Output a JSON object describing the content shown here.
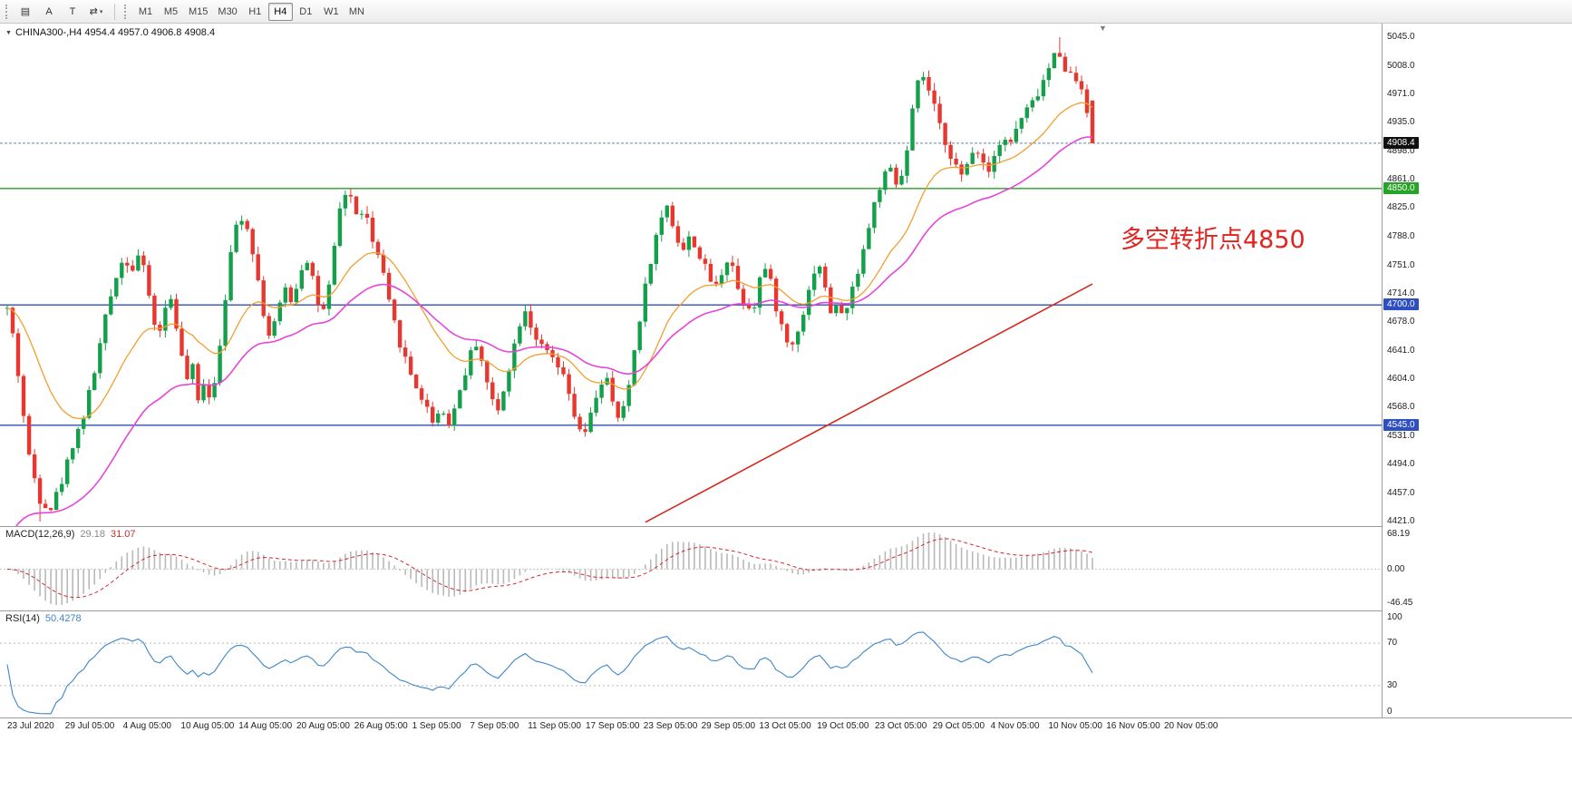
{
  "toolbar": {
    "tools": [
      {
        "name": "chart-tool",
        "glyph": "▤"
      },
      {
        "name": "label-tool",
        "glyph": "A"
      },
      {
        "name": "text-tool",
        "glyph": "T"
      },
      {
        "name": "objects-tool",
        "glyph": "⇄",
        "caret": "▾"
      }
    ],
    "timeframes": [
      {
        "label": "M1",
        "active": false
      },
      {
        "label": "M5",
        "active": false
      },
      {
        "label": "M15",
        "active": false
      },
      {
        "label": "M30",
        "active": false
      },
      {
        "label": "H1",
        "active": false
      },
      {
        "label": "H4",
        "active": true
      },
      {
        "label": "D1",
        "active": false
      },
      {
        "label": "W1",
        "active": false
      },
      {
        "label": "MN",
        "active": false
      }
    ]
  },
  "chart": {
    "symbol_line": "CHINA300-,H4 4954.4 4957.0 4906.8 4908.4",
    "collapse_icon": "▼",
    "shift_marker_icon": "▼",
    "annotation": {
      "text": "多空转折点4850",
      "color": "#e02420"
    }
  },
  "macd_panel": {
    "label": "MACD(12,26,9)",
    "value_main": "29.18",
    "value_signal": "31.07",
    "axis_labels": [
      "68.19",
      "0.00",
      "-46.45"
    ]
  },
  "rsi_panel": {
    "label": "RSI(14)",
    "value": "50.4278",
    "axis_labels": [
      "100",
      "70",
      "30",
      "0"
    ],
    "levels": [
      70,
      30
    ]
  },
  "time_axis": {
    "labels": [
      "23 Jul 2020",
      "29 Jul 05:00",
      "4 Aug 05:00",
      "10 Aug 05:00",
      "14 Aug 05:00",
      "20 Aug 05:00",
      "26 Aug 05:00",
      "1 Sep 05:00",
      "7 Sep 05:00",
      "11 Sep 05:00",
      "17 Sep 05:00",
      "23 Sep 05:00",
      "29 Sep 05:00",
      "13 Oct 05:00",
      "19 Oct 05:00",
      "23 Oct 05:00",
      "29 Oct 05:00",
      "4 Nov 05:00",
      "10 Nov 05:00",
      "16 Nov 05:00",
      "20 Nov 05:00"
    ]
  },
  "chart_data": {
    "type": "candlestick",
    "symbol": "CHINA300-",
    "timeframe": "H4",
    "ohlc_display": {
      "open": 4954.4,
      "high": 4957.0,
      "low": 4906.8,
      "close": 4908.4
    },
    "price_axis_labels": [
      5045.0,
      5008.0,
      4971.0,
      4935.0,
      4898.0,
      4861.0,
      4825.0,
      4788.0,
      4751.0,
      4714.0,
      4678.0,
      4641.0,
      4604.0,
      4568.0,
      4531.0,
      4494.0,
      4457.0,
      4421.0
    ],
    "price_axis_max": 5062.5,
    "price_axis_min": 4415.1,
    "candle_count": 200,
    "last_close": 4908.4,
    "extremes": {
      "high": {
        "t": 0.968,
        "price": 5045.0
      },
      "low": {
        "t": 0.03,
        "price": 4421.0
      }
    },
    "price_path": [
      [
        0.0,
        4695
      ],
      [
        0.006,
        4655
      ],
      [
        0.012,
        4590
      ],
      [
        0.02,
        4505
      ],
      [
        0.03,
        4450
      ],
      [
        0.04,
        4438
      ],
      [
        0.05,
        4472
      ],
      [
        0.06,
        4520
      ],
      [
        0.07,
        4556
      ],
      [
        0.08,
        4612
      ],
      [
        0.09,
        4680
      ],
      [
        0.1,
        4738
      ],
      [
        0.108,
        4762
      ],
      [
        0.115,
        4745
      ],
      [
        0.122,
        4768
      ],
      [
        0.13,
        4718
      ],
      [
        0.138,
        4655
      ],
      [
        0.145,
        4692
      ],
      [
        0.152,
        4712
      ],
      [
        0.158,
        4652
      ],
      [
        0.165,
        4600
      ],
      [
        0.17,
        4628
      ],
      [
        0.175,
        4570
      ],
      [
        0.182,
        4608
      ],
      [
        0.188,
        4572
      ],
      [
        0.196,
        4652
      ],
      [
        0.204,
        4748
      ],
      [
        0.211,
        4802
      ],
      [
        0.218,
        4818
      ],
      [
        0.226,
        4772
      ],
      [
        0.233,
        4716
      ],
      [
        0.24,
        4658
      ],
      [
        0.248,
        4682
      ],
      [
        0.256,
        4722
      ],
      [
        0.263,
        4702
      ],
      [
        0.27,
        4746
      ],
      [
        0.278,
        4762
      ],
      [
        0.286,
        4702
      ],
      [
        0.293,
        4688
      ],
      [
        0.3,
        4756
      ],
      [
        0.308,
        4838
      ],
      [
        0.315,
        4848
      ],
      [
        0.322,
        4812
      ],
      [
        0.329,
        4826
      ],
      [
        0.336,
        4782
      ],
      [
        0.344,
        4756
      ],
      [
        0.352,
        4700
      ],
      [
        0.362,
        4650
      ],
      [
        0.372,
        4610
      ],
      [
        0.382,
        4580
      ],
      [
        0.392,
        4552
      ],
      [
        0.4,
        4566
      ],
      [
        0.408,
        4546
      ],
      [
        0.416,
        4586
      ],
      [
        0.424,
        4622
      ],
      [
        0.431,
        4656
      ],
      [
        0.438,
        4626
      ],
      [
        0.445,
        4582
      ],
      [
        0.452,
        4562
      ],
      [
        0.46,
        4608
      ],
      [
        0.468,
        4652
      ],
      [
        0.476,
        4700
      ],
      [
        0.484,
        4668
      ],
      [
        0.492,
        4645
      ],
      [
        0.5,
        4635
      ],
      [
        0.508,
        4618
      ],
      [
        0.515,
        4598
      ],
      [
        0.522,
        4560
      ],
      [
        0.53,
        4525
      ],
      [
        0.538,
        4558
      ],
      [
        0.545,
        4595
      ],
      [
        0.552,
        4608
      ],
      [
        0.558,
        4570
      ],
      [
        0.565,
        4548
      ],
      [
        0.572,
        4590
      ],
      [
        0.58,
        4660
      ],
      [
        0.59,
        4740
      ],
      [
        0.6,
        4800
      ],
      [
        0.608,
        4830
      ],
      [
        0.615,
        4795
      ],
      [
        0.622,
        4768
      ],
      [
        0.63,
        4790
      ],
      [
        0.638,
        4762
      ],
      [
        0.645,
        4742
      ],
      [
        0.652,
        4720
      ],
      [
        0.66,
        4748
      ],
      [
        0.666,
        4768
      ],
      [
        0.672,
        4725
      ],
      [
        0.68,
        4700
      ],
      [
        0.688,
        4698
      ],
      [
        0.696,
        4752
      ],
      [
        0.702,
        4738
      ],
      [
        0.708,
        4700
      ],
      [
        0.716,
        4660
      ],
      [
        0.722,
        4642
      ],
      [
        0.728,
        4668
      ],
      [
        0.736,
        4700
      ],
      [
        0.742,
        4740
      ],
      [
        0.748,
        4756
      ],
      [
        0.754,
        4718
      ],
      [
        0.76,
        4686
      ],
      [
        0.766,
        4700
      ],
      [
        0.772,
        4684
      ],
      [
        0.778,
        4716
      ],
      [
        0.786,
        4756
      ],
      [
        0.794,
        4800
      ],
      [
        0.801,
        4842
      ],
      [
        0.807,
        4862
      ],
      [
        0.813,
        4876
      ],
      [
        0.819,
        4854
      ],
      [
        0.827,
        4874
      ],
      [
        0.835,
        4958
      ],
      [
        0.842,
        5002
      ],
      [
        0.849,
        4976
      ],
      [
        0.856,
        4946
      ],
      [
        0.862,
        4918
      ],
      [
        0.868,
        4898
      ],
      [
        0.874,
        4880
      ],
      [
        0.88,
        4862
      ],
      [
        0.886,
        4886
      ],
      [
        0.892,
        4906
      ],
      [
        0.898,
        4890
      ],
      [
        0.904,
        4870
      ],
      [
        0.91,
        4900
      ],
      [
        0.918,
        4916
      ],
      [
        0.924,
        4906
      ],
      [
        0.93,
        4928
      ],
      [
        0.938,
        4948
      ],
      [
        0.946,
        4962
      ],
      [
        0.954,
        4985
      ],
      [
        0.962,
        5012
      ],
      [
        0.968,
        5032
      ],
      [
        0.974,
        5008
      ],
      [
        0.98,
        4996
      ],
      [
        0.986,
        4988
      ],
      [
        0.992,
        4978
      ],
      [
        1.0,
        4910
      ]
    ],
    "levels": [
      {
        "price": 4908.4,
        "label": "4908.4",
        "type": "bid",
        "line_color": "#5f87a8",
        "badge_bg": "#101010",
        "dash": "3,2"
      },
      {
        "price": 4850.0,
        "label": "4850.0",
        "type": "hline",
        "line_color": "#27a327",
        "badge_bg": "#27a327",
        "dash": ""
      },
      {
        "price": 4700.0,
        "label": "4700.0",
        "type": "hline",
        "line_color": "#2d4fc0",
        "badge_bg": "#2d4fc0",
        "dash": ""
      },
      {
        "price": 4545.0,
        "label": "4545.0",
        "type": "hline",
        "line_color": "#2d4fc0",
        "badge_bg": "#2d4fc0",
        "dash": ""
      }
    ],
    "trendline": {
      "color": "#d42a20",
      "from": {
        "t": 0.588,
        "price": 4420
      },
      "to": {
        "t": 1.0,
        "price": 4727
      }
    },
    "moving_averages": [
      {
        "name": "ma-fast",
        "color": "#f0a030",
        "period": 20
      },
      {
        "name": "ma-slow",
        "color": "#e645d8",
        "period": 40,
        "seed_price": 4380
      }
    ],
    "indicators": {
      "macd": {
        "fast": 12,
        "slow": 26,
        "signal": 9,
        "main_value": 29.18,
        "signal_value": 31.07
      },
      "rsi": {
        "period": 14,
        "value": 50.4278
      }
    },
    "colors": {
      "up": "#14a04a",
      "down": "#e8372f",
      "macd_hist": "#b9b9b9",
      "macd_signal": "#d22a2a",
      "rsi_line": "#3d86c8"
    }
  }
}
